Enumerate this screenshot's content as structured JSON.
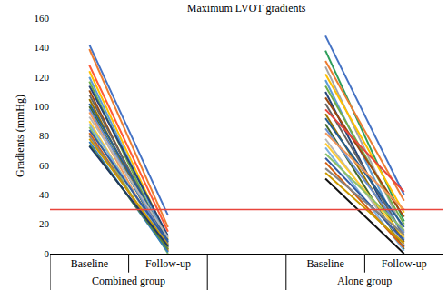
{
  "chart_data": {
    "type": "line",
    "title": "Maximum LVOT gradients",
    "y_label": "Gradients (mmHg)",
    "categories": [
      "Baseline",
      "Follow-up",
      null,
      "Baseline",
      "Follow-up"
    ],
    "groups": [
      {
        "name": "Combined group",
        "span": [
          0,
          1
        ]
      },
      {
        "name": "Alone group",
        "span": [
          3,
          4
        ]
      }
    ],
    "ylim": [
      0,
      160
    ],
    "yticks": [
      0,
      20,
      40,
      60,
      80,
      100,
      120,
      140,
      160
    ],
    "grid": false,
    "reference_line": {
      "value": 30,
      "color": "#e8453c"
    },
    "series": [
      {
        "color": "#4472c4",
        "values": [
          142,
          26,
          null,
          null,
          null
        ]
      },
      {
        "color": "#ed7d31",
        "values": [
          139,
          18,
          null,
          null,
          null
        ]
      },
      {
        "color": "#ff5a36",
        "values": [
          128,
          15,
          null,
          null,
          null
        ]
      },
      {
        "color": "#ffc000",
        "values": [
          124,
          10,
          null,
          null,
          null
        ]
      },
      {
        "color": "#5b9bd5",
        "values": [
          120,
          8,
          null,
          null,
          null
        ]
      },
      {
        "color": "#70ad47",
        "values": [
          117,
          5,
          null,
          null,
          null
        ]
      },
      {
        "color": "#264478",
        "values": [
          114,
          12,
          null,
          null,
          null
        ]
      },
      {
        "color": "#9e480e",
        "values": [
          111,
          3,
          null,
          null,
          null
        ]
      },
      {
        "color": "#636363",
        "values": [
          108,
          7,
          null,
          null,
          null
        ]
      },
      {
        "color": "#997300",
        "values": [
          105,
          2,
          null,
          null,
          null
        ]
      },
      {
        "color": "#255e91",
        "values": [
          102,
          9,
          null,
          null,
          null
        ]
      },
      {
        "color": "#43682b",
        "values": [
          100,
          4,
          null,
          null,
          null
        ]
      },
      {
        "color": "#698ed0",
        "values": [
          98,
          6,
          null,
          null,
          null
        ]
      },
      {
        "color": "#f1975a",
        "values": [
          96,
          1,
          null,
          null,
          null
        ]
      },
      {
        "color": "#b7b7b7",
        "values": [
          93,
          11,
          null,
          null,
          null
        ]
      },
      {
        "color": "#ffcd33",
        "values": [
          90,
          3,
          null,
          null,
          null
        ]
      },
      {
        "color": "#7cafdd",
        "values": [
          88,
          5,
          null,
          null,
          null
        ]
      },
      {
        "color": "#8cc168",
        "values": [
          86,
          0,
          null,
          null,
          null
        ]
      },
      {
        "color": "#335aa1",
        "values": [
          84,
          8,
          null,
          null,
          null
        ]
      },
      {
        "color": "#d26012",
        "values": [
          82,
          2,
          null,
          null,
          null
        ]
      },
      {
        "color": "#848484",
        "values": [
          80,
          4,
          null,
          null,
          null
        ]
      },
      {
        "color": "#cc9a00",
        "values": [
          78,
          6,
          null,
          null,
          null
        ]
      },
      {
        "color": "#327dc2",
        "values": [
          76,
          1,
          null,
          null,
          null
        ]
      },
      {
        "color": "#5a8a39",
        "values": [
          74,
          3,
          null,
          null,
          null
        ]
      },
      {
        "color": "#1f3864",
        "values": [
          73,
          5,
          null,
          null,
          null
        ]
      },
      {
        "color": "#4472c4",
        "values": [
          null,
          null,
          null,
          148,
          40
        ]
      },
      {
        "color": "#2e9e5b",
        "values": [
          null,
          null,
          null,
          138,
          22
        ]
      },
      {
        "color": "#ed7d31",
        "values": [
          null,
          null,
          null,
          131,
          36
        ]
      },
      {
        "color": "#a5a5a5",
        "values": [
          null,
          null,
          null,
          127,
          15
        ]
      },
      {
        "color": "#ffc000",
        "values": [
          null,
          null,
          null,
          122,
          28
        ]
      },
      {
        "color": "#5b9bd5",
        "values": [
          null,
          null,
          null,
          118,
          10
        ]
      },
      {
        "color": "#70ad47",
        "values": [
          null,
          null,
          null,
          114,
          20
        ]
      },
      {
        "color": "#264478",
        "values": [
          null,
          null,
          null,
          110,
          5
        ]
      },
      {
        "color": "#9e480e",
        "values": [
          null,
          null,
          null,
          106,
          25
        ]
      },
      {
        "color": "#636363",
        "values": [
          null,
          null,
          null,
          102,
          12
        ]
      },
      {
        "color": "#e8453c",
        "values": [
          null,
          null,
          null,
          98,
          42
        ]
      },
      {
        "color": "#997300",
        "values": [
          null,
          null,
          null,
          95,
          8
        ]
      },
      {
        "color": "#255e91",
        "values": [
          null,
          null,
          null,
          92,
          18
        ]
      },
      {
        "color": "#43682b",
        "values": [
          null,
          null,
          null,
          88,
          3
        ]
      },
      {
        "color": "#698ed0",
        "values": [
          null,
          null,
          null,
          85,
          14
        ]
      },
      {
        "color": "#f1975a",
        "values": [
          null,
          null,
          null,
          82,
          30
        ]
      },
      {
        "color": "#b7b7b7",
        "values": [
          null,
          null,
          null,
          78,
          6
        ]
      },
      {
        "color": "#ffcd33",
        "values": [
          null,
          null,
          null,
          75,
          11
        ]
      },
      {
        "color": "#7cafdd",
        "values": [
          null,
          null,
          null,
          72,
          2
        ]
      },
      {
        "color": "#8cc168",
        "values": [
          null,
          null,
          null,
          68,
          16
        ]
      },
      {
        "color": "#335aa1",
        "values": [
          null,
          null,
          null,
          65,
          9
        ]
      },
      {
        "color": "#d26012",
        "values": [
          null,
          null,
          null,
          62,
          4
        ]
      },
      {
        "color": "#848484",
        "values": [
          null,
          null,
          null,
          58,
          13
        ]
      },
      {
        "color": "#cc9a00",
        "values": [
          null,
          null,
          null,
          55,
          7
        ]
      },
      {
        "color": "#111111",
        "values": [
          null,
          null,
          null,
          51,
          0
        ]
      }
    ]
  }
}
